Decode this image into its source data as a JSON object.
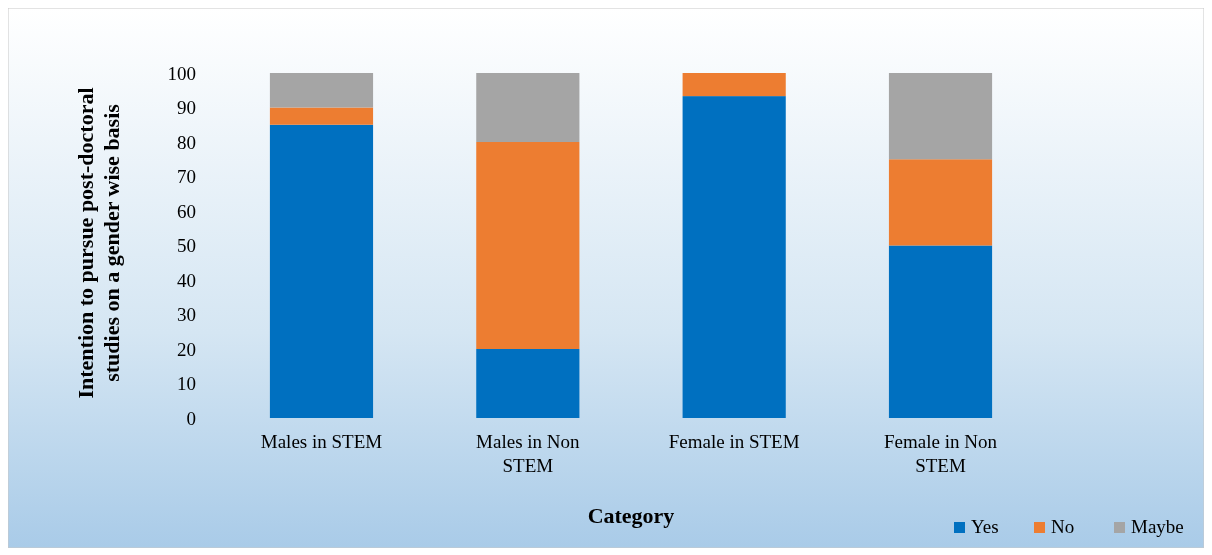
{
  "chart_data": {
    "type": "bar",
    "stacked": true,
    "xlabel": "Category",
    "ylabel": "Intention to pursue post-doctoral studies on a gender wise basis",
    "categories": [
      "Males in STEM",
      "Males in Non STEM",
      "Female in STEM",
      "Female in Non STEM"
    ],
    "series": [
      {
        "name": "Yes",
        "color": "#0070c0",
        "values": [
          85,
          20,
          93.3,
          50
        ]
      },
      {
        "name": "No",
        "color": "#ed7d31",
        "values": [
          5,
          60,
          6.7,
          25
        ]
      },
      {
        "name": "Maybe",
        "color": "#a5a5a5",
        "values": [
          10,
          20,
          0,
          25
        ]
      }
    ],
    "ylim": [
      0,
      100
    ],
    "yticks": [
      0,
      10,
      20,
      30,
      40,
      50,
      60,
      70,
      80,
      90,
      100
    ],
    "grid": false,
    "legend": "bottom right"
  }
}
